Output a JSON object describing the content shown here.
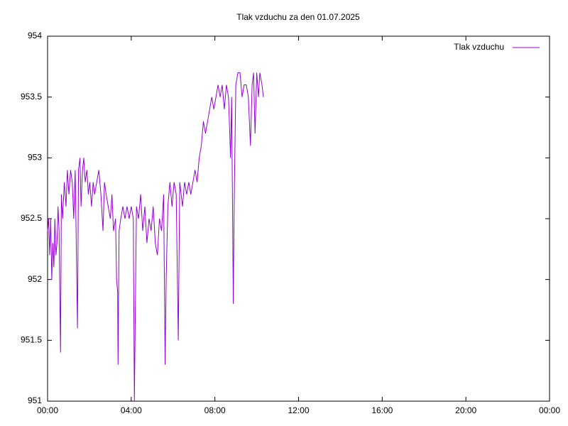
{
  "chart_data": {
    "type": "line",
    "title": "Tlak vzduchu za den 01.07.2025",
    "legend": "top right",
    "grid": false,
    "xlim": [
      0,
      24
    ],
    "xticks": [
      {
        "value": 0,
        "label": "00:00"
      },
      {
        "value": 4,
        "label": "04:00"
      },
      {
        "value": 8,
        "label": "08:00"
      },
      {
        "value": 12,
        "label": "12:00"
      },
      {
        "value": 16,
        "label": "16:00"
      },
      {
        "value": 20,
        "label": "20:00"
      },
      {
        "value": 24,
        "label": "00:00"
      }
    ],
    "ylim": [
      951,
      954
    ],
    "yticks": [
      951,
      951.5,
      952,
      952.5,
      953,
      953.5,
      954
    ],
    "x": [
      0.0,
      0.05,
      0.1,
      0.15,
      0.2,
      0.25,
      0.3,
      0.35,
      0.4,
      0.45,
      0.5,
      0.55,
      0.62,
      0.66,
      0.72,
      0.8,
      0.88,
      0.95,
      1.02,
      1.1,
      1.18,
      1.25,
      1.32,
      1.38,
      1.43,
      1.48,
      1.55,
      1.6,
      1.67,
      1.73,
      1.8,
      1.88,
      1.95,
      2.02,
      2.1,
      2.18,
      2.25,
      2.35,
      2.45,
      2.55,
      2.65,
      2.72,
      2.8,
      2.9,
      3.0,
      3.08,
      3.15,
      3.25,
      3.3,
      3.35,
      3.37,
      3.42,
      3.5,
      3.6,
      3.7,
      3.8,
      3.9,
      4.0,
      4.1,
      4.15,
      4.2,
      4.25,
      4.35,
      4.45,
      4.55,
      4.65,
      4.75,
      4.85,
      4.95,
      5.05,
      5.15,
      5.25,
      5.35,
      5.45,
      5.55,
      5.62,
      5.67,
      5.75,
      5.85,
      5.95,
      6.05,
      6.15,
      6.25,
      6.32,
      6.45,
      6.55,
      6.65,
      6.75,
      6.85,
      6.95,
      7.05,
      7.15,
      7.25,
      7.35,
      7.45,
      7.55,
      7.65,
      7.75,
      7.85,
      7.95,
      8.05,
      8.15,
      8.25,
      8.35,
      8.45,
      8.55,
      8.65,
      8.75,
      8.8,
      8.88,
      8.92,
      9.0,
      9.1,
      9.2,
      9.3,
      9.4,
      9.5,
      9.6,
      9.7,
      9.78,
      9.85,
      9.92,
      10.0,
      10.08,
      10.15,
      10.25,
      10.32
    ],
    "series": [
      {
        "name": "Tlak vzduchu",
        "color": "#9400d3",
        "values": [
          952.4,
          952.5,
          952.2,
          952.5,
          952.0,
          952.3,
          952.1,
          952.5,
          952.2,
          952.3,
          952.6,
          952.4,
          951.4,
          952.7,
          952.5,
          952.8,
          952.6,
          952.9,
          952.7,
          952.9,
          952.8,
          952.5,
          952.9,
          952.2,
          951.6,
          952.9,
          953.0,
          952.6,
          952.9,
          953.0,
          952.8,
          952.9,
          952.7,
          952.8,
          952.6,
          952.8,
          952.7,
          952.8,
          952.9,
          952.7,
          952.4,
          952.8,
          952.7,
          952.6,
          952.5,
          952.7,
          952.4,
          952.5,
          952.0,
          951.9,
          951.3,
          952.4,
          952.5,
          952.6,
          952.5,
          952.6,
          952.5,
          952.6,
          952.5,
          951.0,
          951.8,
          952.6,
          952.5,
          952.7,
          952.4,
          952.6,
          952.3,
          952.5,
          952.4,
          952.6,
          952.3,
          952.2,
          952.5,
          952.4,
          952.7,
          951.3,
          952.0,
          952.6,
          952.8,
          952.6,
          952.8,
          952.7,
          951.5,
          952.8,
          952.6,
          952.8,
          952.7,
          952.8,
          952.7,
          952.8,
          952.9,
          952.8,
          953.0,
          953.1,
          953.3,
          953.2,
          953.3,
          953.4,
          953.5,
          953.4,
          953.5,
          953.6,
          953.5,
          953.6,
          953.4,
          953.6,
          953.5,
          953.0,
          953.5,
          951.8,
          952.6,
          953.6,
          953.7,
          953.7,
          953.5,
          953.6,
          953.6,
          953.5,
          953.1,
          953.6,
          953.7,
          953.2,
          953.7,
          953.5,
          953.7,
          953.6,
          953.5
        ]
      }
    ]
  }
}
